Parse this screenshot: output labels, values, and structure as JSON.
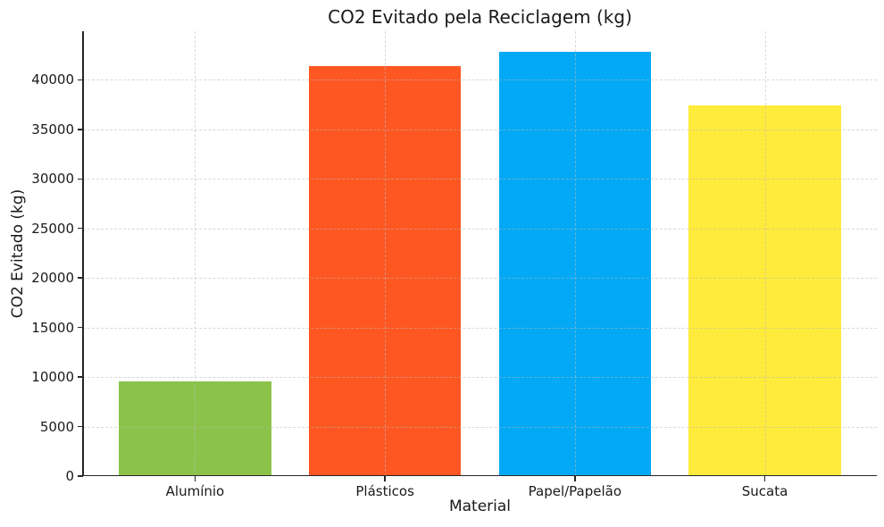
{
  "figure": {
    "background": "#ffffff",
    "text_color": "#1a1a1a",
    "spine_color": "#262626",
    "grid_color": "rgba(185,185,185,0.55)"
  },
  "chart_data": {
    "type": "bar",
    "title": "CO2 Evitado pela Reciclagem (kg)",
    "xlabel": "Material",
    "ylabel": "CO2 Evitado (kg)",
    "categories": [
      "Alumínio",
      "Plásticos",
      "Papel/Papelão",
      "Sucata"
    ],
    "values": [
      9600,
      41400,
      42800,
      37400
    ],
    "bar_colors": [
      "#8BC34A",
      "#FF5722",
      "#03A9F4",
      "#FFEB3B"
    ],
    "bar_width": 0.8,
    "xlim": [
      -0.59,
      3.59
    ],
    "ylim": [
      0,
      44900
    ],
    "yticks": [
      0,
      5000,
      10000,
      15000,
      20000,
      25000,
      30000,
      35000,
      40000
    ],
    "grid": "dashed, horizontal and vertical, drawn above bars",
    "legend": "none"
  }
}
